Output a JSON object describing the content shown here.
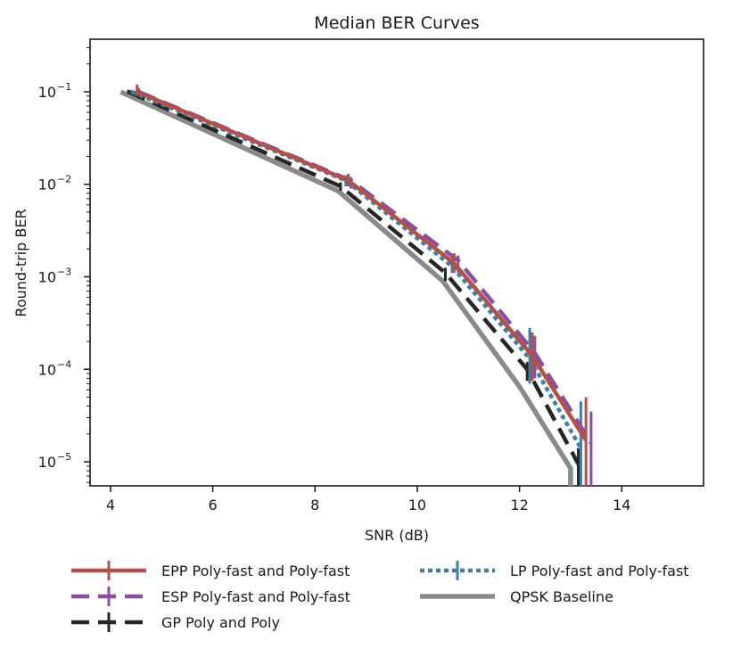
{
  "chart_data": {
    "type": "line",
    "title": "Median BER Curves",
    "xlabel": "SNR (dB)",
    "ylabel": "Round-trip BER",
    "x_scale": "linear",
    "y_scale": "log",
    "xlim": [
      3.6,
      15.6
    ],
    "ylim": [
      5.5e-06,
      0.37
    ],
    "x_ticks": [
      4,
      6,
      8,
      10,
      12,
      14
    ],
    "x_tick_labels": [
      "4",
      "6",
      "8",
      "10",
      "12",
      "14"
    ],
    "y_ticks": [
      0.1,
      0.01,
      0.001,
      0.0001,
      1e-05
    ],
    "y_tick_labels": [
      {
        "base": "10",
        "exp": "−1"
      },
      {
        "base": "10",
        "exp": "−2"
      },
      {
        "base": "10",
        "exp": "−3"
      },
      {
        "base": "10",
        "exp": "−4"
      },
      {
        "base": "10",
        "exp": "−5"
      }
    ],
    "grid": false,
    "legend_position": "below plot",
    "series": [
      {
        "name": "EPP Poly-fast and Poly-fast",
        "color": "#b0524a",
        "style": "solid",
        "x": [
          4.52,
          8.65,
          10.72,
          12.25,
          13.3
        ],
        "y": [
          0.1,
          0.011,
          0.0014,
          0.00014,
          1.7e-05
        ],
        "err_low": [
          0.09,
          0.0095,
          0.0011,
          7.5e-05,
          5.5e-06
        ],
        "err_high": [
          0.12,
          0.013,
          0.0018,
          0.00025,
          5e-05
        ]
      },
      {
        "name": "ESP Poly-fast and Poly-fast",
        "color": "#8a4fa3",
        "style": "dashed",
        "x": [
          4.55,
          8.7,
          10.8,
          12.3,
          13.4
        ],
        "y": [
          0.1,
          0.011,
          0.0015,
          0.00015,
          1.6e-05
        ],
        "err_low": [
          0.095,
          0.009,
          0.0011,
          8e-05,
          5.5e-06
        ],
        "err_high": [
          0.11,
          0.012,
          0.0017,
          0.00023,
          3.5e-05
        ]
      },
      {
        "name": "GP Poly and Poly",
        "color": "#262626",
        "style": "dashed",
        "x": [
          4.35,
          8.5,
          10.55,
          12.15,
          13.15
        ],
        "y": [
          0.1,
          0.0095,
          0.0011,
          0.0001,
          9.5e-06
        ],
        "err_low": [
          0.095,
          0.0085,
          0.0009,
          7.5e-05,
          5.5e-06
        ],
        "err_high": [
          0.105,
          0.0105,
          0.00125,
          0.00012,
          1.4e-05
        ]
      },
      {
        "name": "LP Poly-fast and Poly-fast",
        "color": "#3f7fa6",
        "style": "dotted",
        "x": [
          4.42,
          8.6,
          10.68,
          12.2,
          13.2
        ],
        "y": [
          0.1,
          0.011,
          0.0013,
          0.00013,
          1.4e-05
        ],
        "err_low": [
          0.095,
          0.0095,
          0.0011,
          7e-05,
          5.5e-06
        ],
        "err_high": [
          0.105,
          0.0125,
          0.0016,
          0.00028,
          4.5e-05
        ]
      },
      {
        "name": "QPSK Baseline",
        "color": "#8a8a8a",
        "style": "solid",
        "x": [
          4.2,
          8.45,
          10.5,
          12.0,
          13.0,
          13.0
        ],
        "y": [
          0.1,
          0.0085,
          0.0009,
          6.5e-05,
          8.5e-06,
          5.5e-06
        ]
      }
    ]
  }
}
